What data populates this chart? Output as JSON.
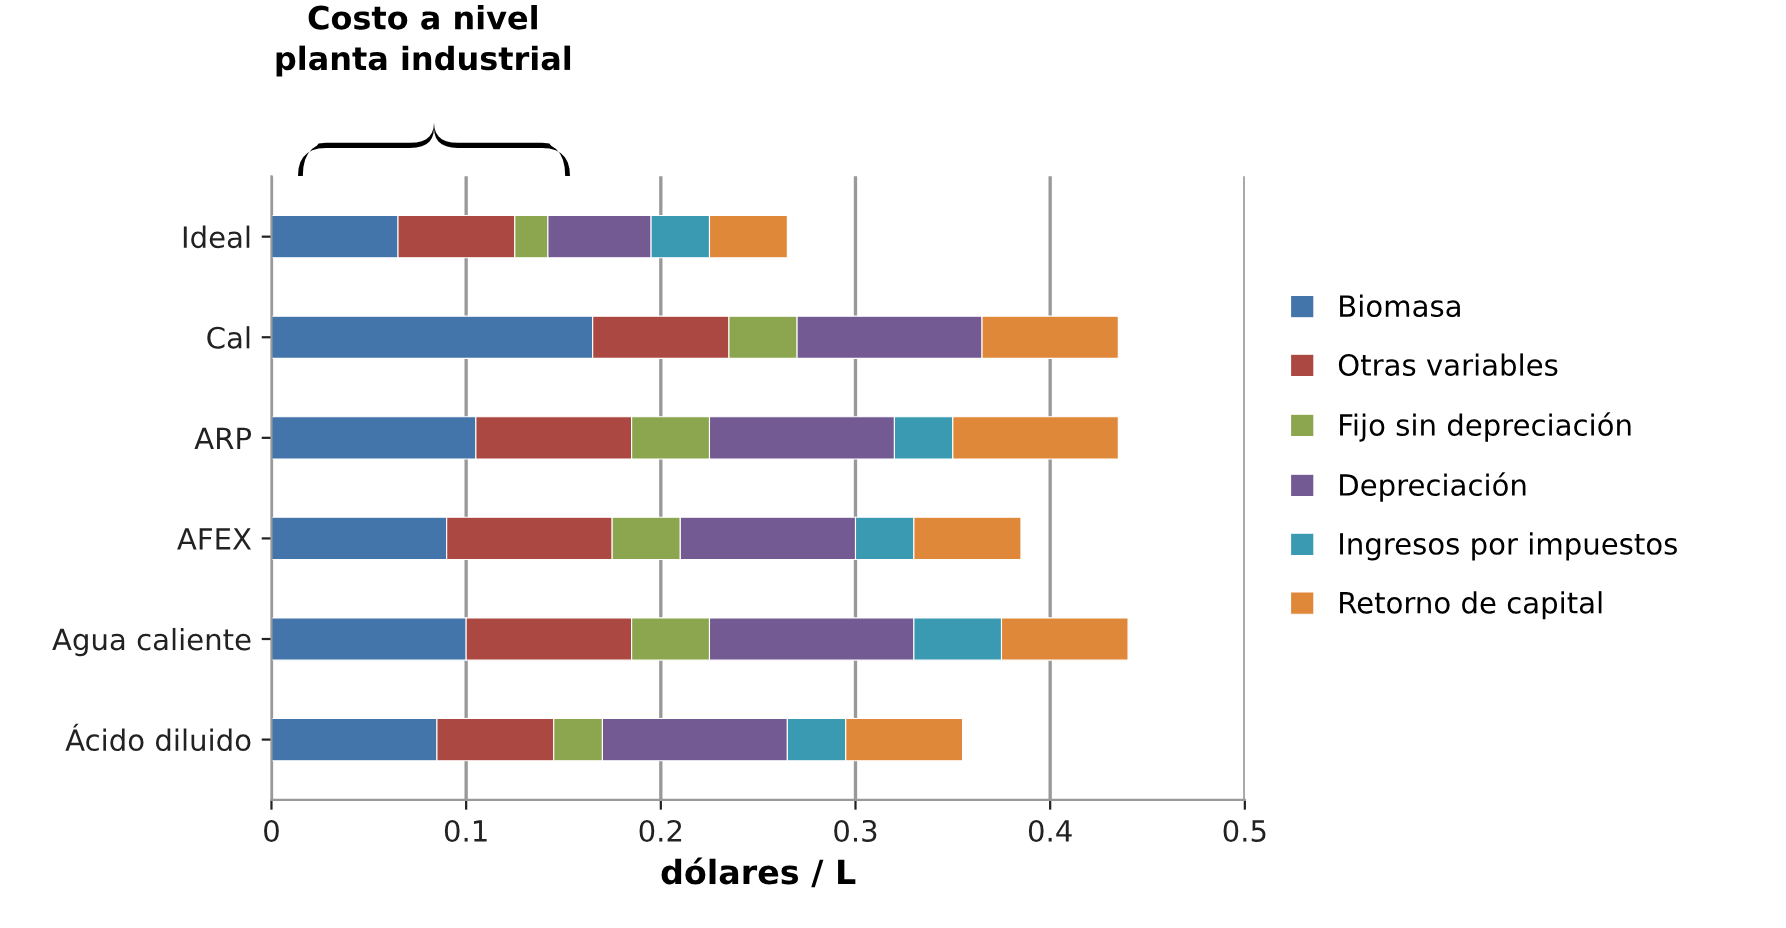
{
  "chart_data": {
    "type": "bar",
    "orientation": "horizontal",
    "stacked": true,
    "xlabel": "dólares / L",
    "annotations": [
      "Costo a nivel\nplanta industrial"
    ],
    "categories": [
      "Ideal",
      "Cal",
      "ARP",
      "AFEX",
      "Agua caliente",
      "Ácido diluido"
    ],
    "series": [
      {
        "name": "Biomasa",
        "color": "#4374aa",
        "values": [
          0.065,
          0.165,
          0.105,
          0.09,
          0.1,
          0.085
        ]
      },
      {
        "name": "Otras variables",
        "color": "#ac4842",
        "values": [
          0.06,
          0.07,
          0.08,
          0.085,
          0.085,
          0.06
        ]
      },
      {
        "name": "Fijo sin depreciación",
        "color": "#8ca64f",
        "values": [
          0.017,
          0.035,
          0.04,
          0.035,
          0.04,
          0.025
        ]
      },
      {
        "name": "Depreciación",
        "color": "#735a92",
        "values": [
          0.053,
          0.095,
          0.095,
          0.09,
          0.105,
          0.095
        ]
      },
      {
        "name": "Ingresos por impuestos",
        "color": "#3a9ab2",
        "values": [
          0.03,
          null,
          0.03,
          0.03,
          0.045,
          0.03
        ]
      },
      {
        "name": "Retorno de capital",
        "color": "#e0883a",
        "values": [
          0.04,
          0.07,
          0.085,
          0.055,
          0.065,
          0.06
        ]
      }
    ],
    "xlim": [
      0,
      0.5
    ],
    "xticks": [
      0,
      0.1,
      0.2,
      0.3,
      0.4,
      0.5
    ],
    "grid": "x",
    "legend": "right"
  }
}
